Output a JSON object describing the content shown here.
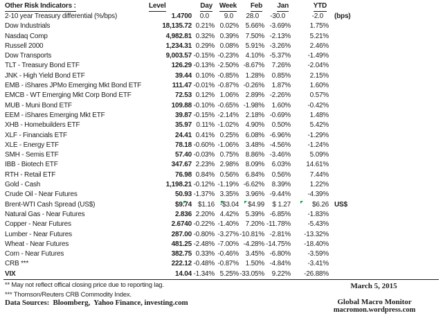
{
  "table": {
    "title": "Other Risk Indicators :",
    "columns": [
      "Level",
      "Day",
      "Week",
      "Feb",
      "Jan",
      "YTD"
    ],
    "rows": [
      {
        "label": "2-10 year Treasury differential (%/bps)",
        "level": "1.4700",
        "day": "0.0",
        "week": "9.0",
        "feb": "28.0",
        "jan": "-30.0",
        "ytd": "-2.0",
        "suffix": "(bps)",
        "padded": true
      },
      {
        "label": "Dow Industrials",
        "level": "18,135.72",
        "day": "0.21%",
        "week": "0.02%",
        "feb": "5.66%",
        "jan": "-3.69%",
        "ytd": "1.75%",
        "suffix": ""
      },
      {
        "label": "Nasdaq Comp",
        "level": "4,982.81",
        "day": "0.32%",
        "week": "0.39%",
        "feb": "7.50%",
        "jan": "-2.13%",
        "ytd": "5.21%",
        "suffix": ""
      },
      {
        "label": "Russell 2000",
        "level": "1,234.31",
        "day": "0.29%",
        "week": "0.08%",
        "feb": "5.91%",
        "jan": "-3.26%",
        "ytd": "2.46%",
        "suffix": ""
      },
      {
        "label": "Dow Transports",
        "level": "9,003.57",
        "day": "-0.15%",
        "week": "-0.23%",
        "feb": "4.10%",
        "jan": "-5.37%",
        "ytd": "-1.49%",
        "suffix": ""
      },
      {
        "label": "TLT - Treasury Bond ETF",
        "level": "126.29",
        "day": "-0.13%",
        "week": "-2.50%",
        "feb": "-8.67%",
        "jan": "7.26%",
        "ytd": "-2.04%",
        "suffix": ""
      },
      {
        "label": "JNK - High Yield Bond ETF",
        "level": "39.44",
        "day": "0.10%",
        "week": "-0.85%",
        "feb": "1.28%",
        "jan": "0.85%",
        "ytd": "2.15%",
        "suffix": ""
      },
      {
        "label": "EMB - iShares JPMo Emerging Mkt Bond ETF",
        "level": "111.47",
        "day": "-0.01%",
        "week": "-0.87%",
        "feb": "-0.26%",
        "jan": "1.87%",
        "ytd": "1.60%",
        "suffix": ""
      },
      {
        "label": "EMCB - WT Emerging Mkt Corp Bond ETF",
        "level": "72.53",
        "day": "0.12%",
        "week": "1.06%",
        "feb": "2.89%",
        "jan": "-2.26%",
        "ytd": "0.57%",
        "suffix": ""
      },
      {
        "label": "MUB - Muni Bond ETF",
        "level": "109.88",
        "day": "-0.10%",
        "week": "-0.65%",
        "feb": "-1.98%",
        "jan": "1.60%",
        "ytd": "-0.42%",
        "suffix": ""
      },
      {
        "label": "EEM - iShares Emerging Mkt ETF",
        "level": "39.87",
        "day": "-0.15%",
        "week": "-2.14%",
        "feb": "2.18%",
        "jan": "-0.69%",
        "ytd": "1.48%",
        "suffix": ""
      },
      {
        "label": "XHB - Homebuilders ETF",
        "level": "35.97",
        "day": "0.11%",
        "week": "-1.02%",
        "feb": "4.90%",
        "jan": "0.50%",
        "ytd": "5.42%",
        "suffix": ""
      },
      {
        "label": "XLF - Financials ETF",
        "level": "24.41",
        "day": "0.41%",
        "week": "0.25%",
        "feb": "6.08%",
        "jan": "-6.96%",
        "ytd": "-1.29%",
        "suffix": ""
      },
      {
        "label": "XLE - Energy ETF",
        "level": "78.18",
        "day": "-0.60%",
        "week": "-1.06%",
        "feb": "3.48%",
        "jan": "-4.56%",
        "ytd": "-1.24%",
        "suffix": ""
      },
      {
        "label": "SMH - Semis ETF",
        "level": "57.40",
        "day": "-0.03%",
        "week": "0.75%",
        "feb": "8.86%",
        "jan": "-3.46%",
        "ytd": "5.09%",
        "suffix": ""
      },
      {
        "label": "IBB - Biotech ETF",
        "level": "347.67",
        "day": "2.23%",
        "week": "2.98%",
        "feb": "8.09%",
        "jan": "6.03%",
        "ytd": "14.61%",
        "suffix": ""
      },
      {
        "label": "RTH - Retail ETF",
        "level": "76.98",
        "day": "0.84%",
        "week": "0.56%",
        "feb": "6.84%",
        "jan": "0.56%",
        "ytd": "7.44%",
        "suffix": ""
      },
      {
        "label": "Gold - Cash",
        "level": "1,198.21",
        "day": "-0.12%",
        "week": "-1.19%",
        "feb": "-6.62%",
        "jan": "8.39%",
        "ytd": "1.22%",
        "suffix": ""
      },
      {
        "label": "Crude Oil - Near Futures",
        "level": "50.93",
        "day": "-1.37%",
        "week": "3.35%",
        "feb": "3.96%",
        "jan": "-9.44%",
        "ytd": "-4.39%",
        "suffix": ""
      },
      {
        "label": "Brent-WTI Cash Spread (US$)",
        "level": "$9.74",
        "day": "$1.16",
        "week": "-$3.04",
        "feb": "$4.99",
        "jan": "$ 1.27",
        "ytd": "$6.26",
        "suffix": "US$",
        "markers": [
          "day",
          "week",
          "feb",
          "ytd"
        ]
      },
      {
        "label": "Natural Gas - Near Futures",
        "level": "2.836",
        "day": "2.20%",
        "week": "4.42%",
        "feb": "5.39%",
        "jan": "-6.85%",
        "ytd": "-1.83%",
        "suffix": ""
      },
      {
        "label": "Copper - Near Futures",
        "level": "2.6740",
        "day": "-0.22%",
        "week": "-1.40%",
        "feb": "7.20%",
        "jan": "-11.78%",
        "ytd": "-5.43%",
        "suffix": ""
      },
      {
        "label": "Lumber - Near Futures",
        "level": "287.00",
        "day": "-0.80%",
        "week": "-3.27%",
        "feb": "-10.81%",
        "jan": "-2.81%",
        "ytd": "-13.32%",
        "suffix": ""
      },
      {
        "label": "Wheat - Near Futures",
        "level": "481.25",
        "day": "-2.48%",
        "week": "-7.00%",
        "feb": "-4.28%",
        "jan": "-14.75%",
        "ytd": "-18.40%",
        "suffix": ""
      },
      {
        "label": "Corn - Near Futures",
        "level": "382.75",
        "day": "0.33%",
        "week": "-0.46%",
        "feb": "3.45%",
        "jan": "-6.80%",
        "ytd": "-3.59%",
        "suffix": ""
      },
      {
        "label": "CRB ***",
        "level": "222.12",
        "day": "-0.48%",
        "week": "-0.87%",
        "feb": "1.50%",
        "jan": "-4.84%",
        "ytd": "-3.41%",
        "suffix": ""
      },
      {
        "label": "VIX",
        "level": "14.04",
        "day": "-1.34%",
        "week": "5.25%",
        "feb": "-33.05%",
        "jan": "9.22%",
        "ytd": "-26.88%",
        "suffix": "",
        "label_bold": true
      }
    ]
  },
  "footnotes": {
    "note2": "**  May not reflect offical closing price due to reporting lag.",
    "note3": "*** Thomson/Reuters CRB Commodity Index."
  },
  "data_sources": "Data Sources:  Bloomberg,  Yahoo Finance, investing.com",
  "footer_right": {
    "date": "March 5, 2015",
    "brand": "Global Macro Monitor",
    "url": "macromon.wordpress.com"
  },
  "colors": {
    "comment_marker_green": "#00a33c",
    "text": "#1c1c1c",
    "background": "#ffffff"
  }
}
